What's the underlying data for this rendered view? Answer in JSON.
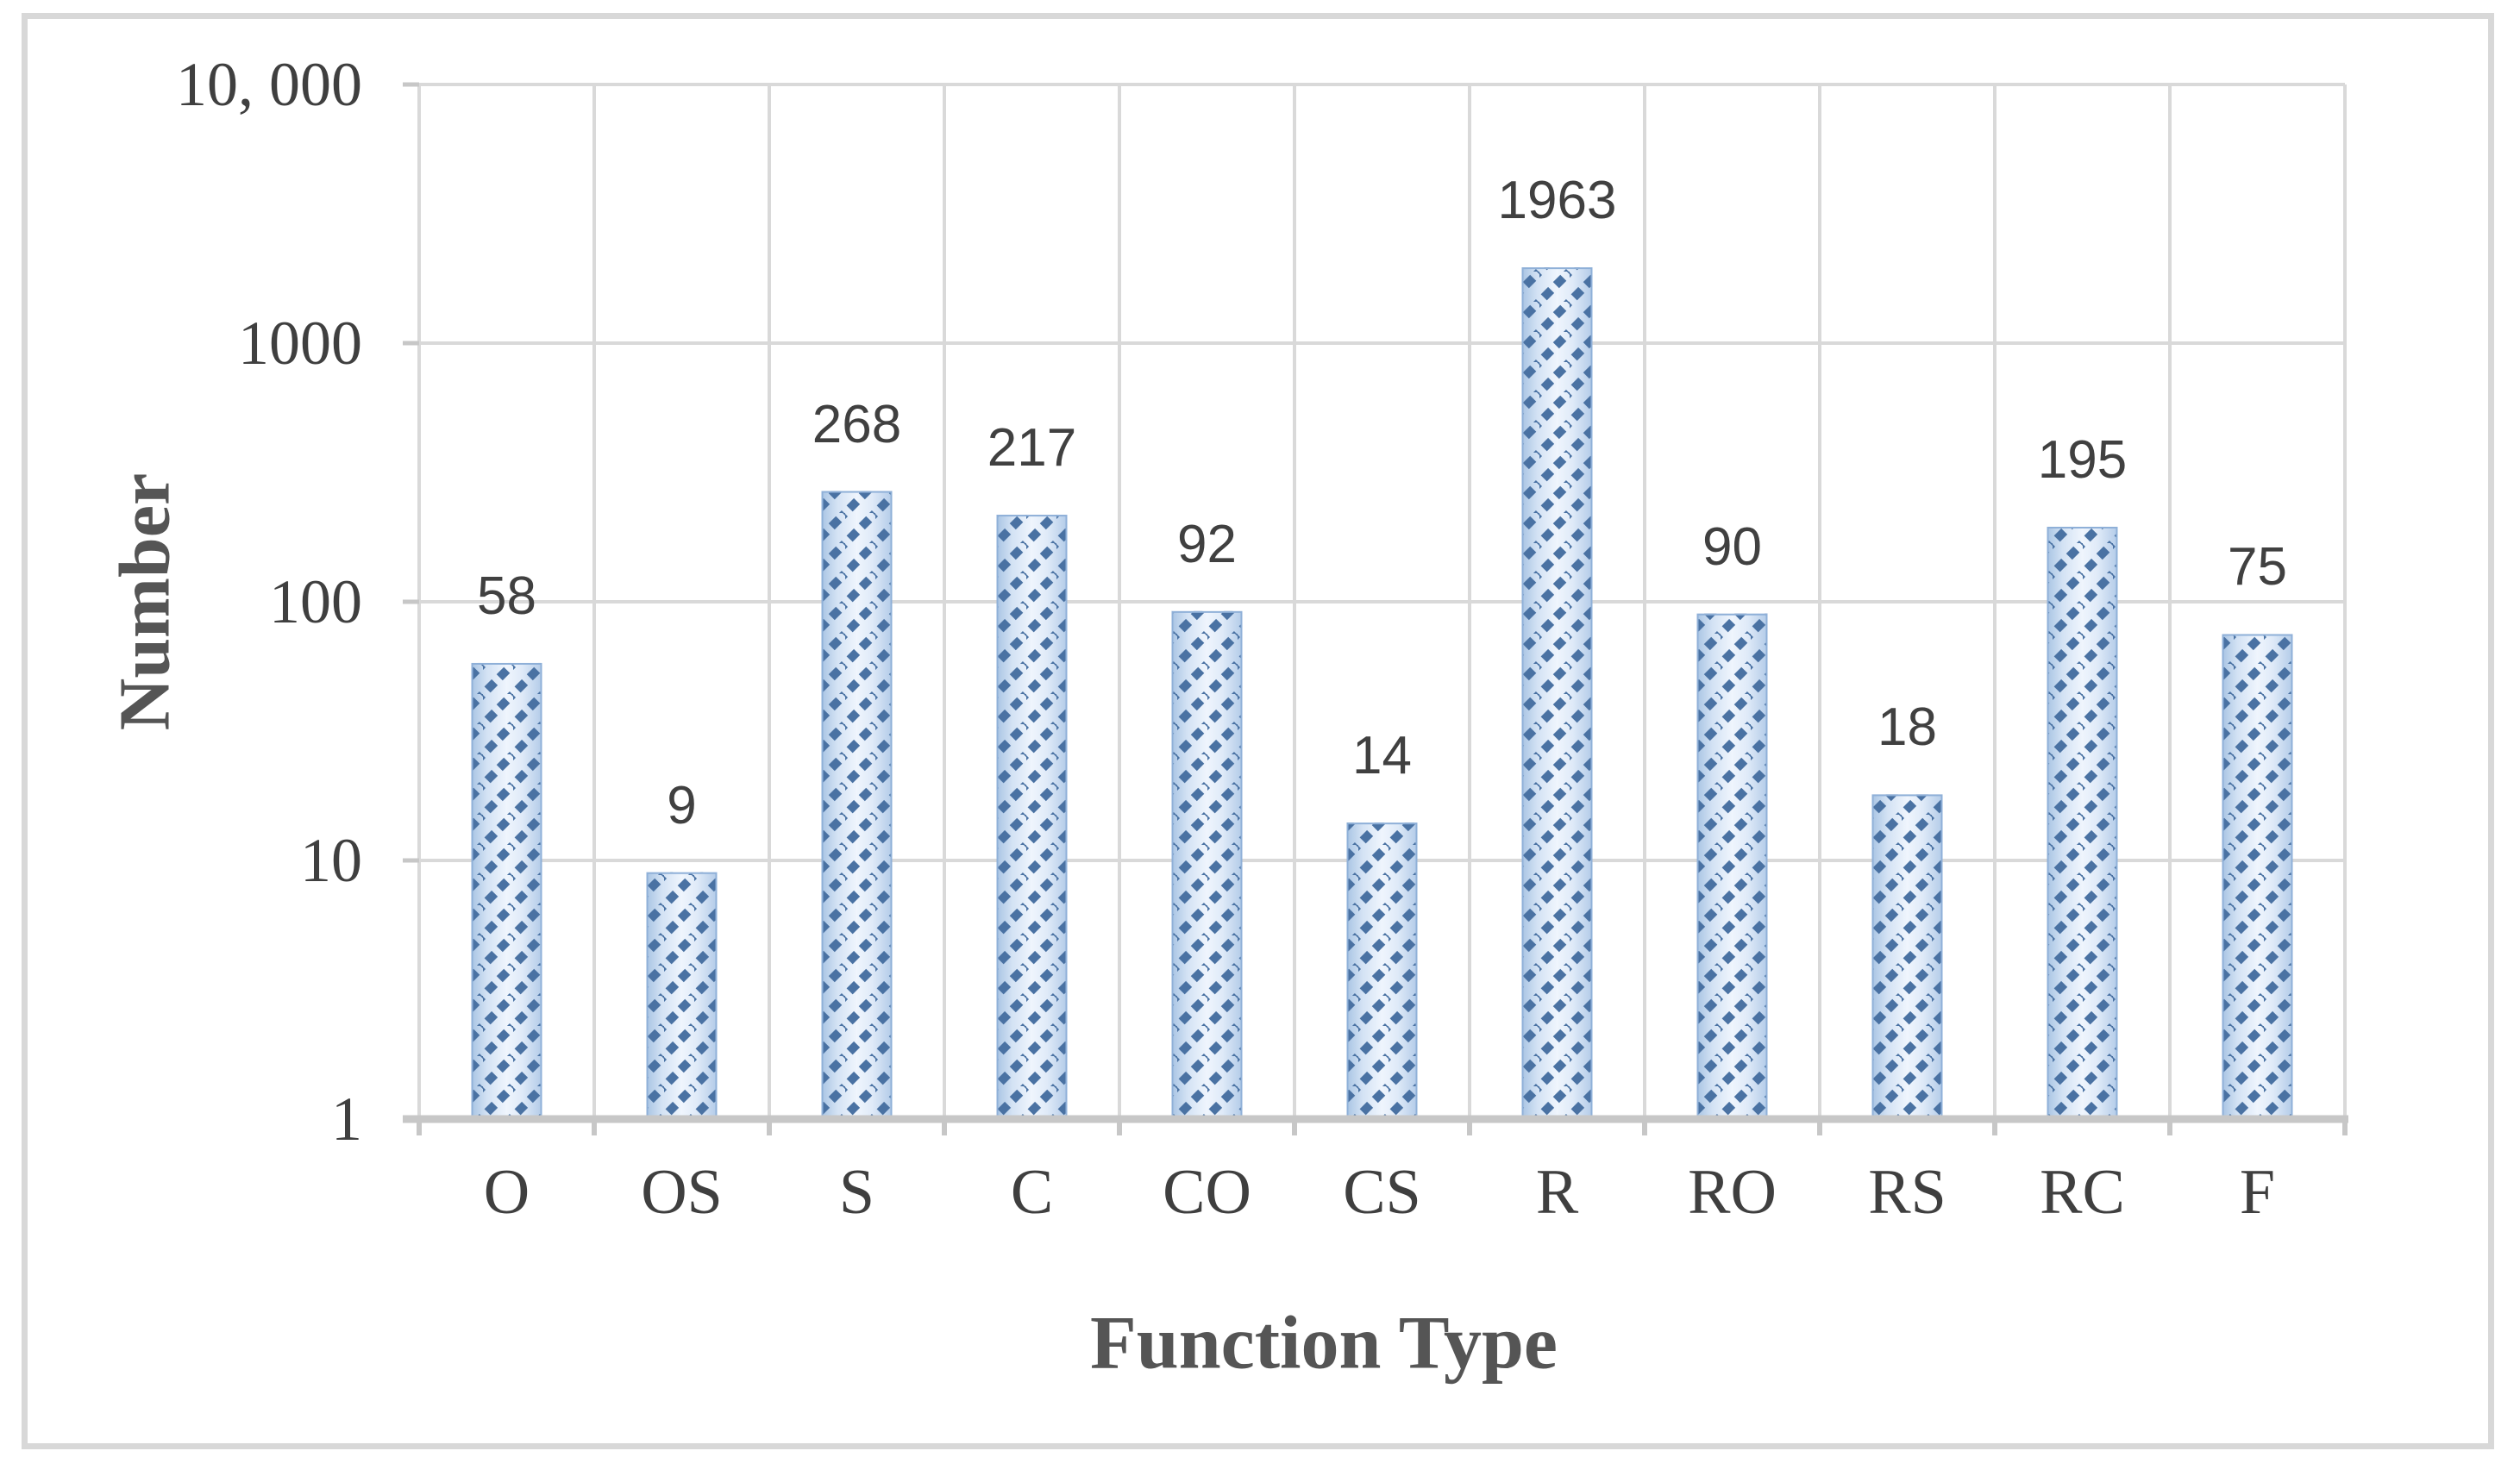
{
  "chart_data": {
    "type": "bar",
    "title": "",
    "xlabel": "Function Type",
    "ylabel": "Number",
    "categories": [
      "O",
      "OS",
      "S",
      "C",
      "CO",
      "CS",
      "R",
      "RO",
      "RS",
      "RC",
      "F"
    ],
    "values": [
      58,
      9,
      268,
      217,
      92,
      14,
      1963,
      90,
      18,
      195,
      75
    ],
    "bar_labels": [
      "58",
      "9",
      "268",
      "217",
      "92",
      "14",
      "1963",
      "90",
      "18",
      "195",
      "75"
    ],
    "yscale": "log",
    "ylim": [
      1,
      10000
    ],
    "yticks": [
      {
        "label": "1",
        "value": 1
      },
      {
        "label": "10",
        "value": 10
      },
      {
        "label": "100",
        "value": 100
      },
      {
        "label": "1000",
        "value": 1000
      },
      {
        "label": "10, 000",
        "value": 10000
      }
    ],
    "grid": true,
    "legend_position": "none",
    "colors": {
      "bar_fill_center": "#eff5fd",
      "bar_fill_edge": "#a8c4e3",
      "bar_hatch": "#4a72a3",
      "bar_outline": "#8fb0d8",
      "gridline": "#d9d9d9",
      "axis_line": "#c7c7c7",
      "tick_text": "#3f3f3f",
      "title_text": "#555555",
      "figure_border": "#d8d8d8"
    }
  }
}
